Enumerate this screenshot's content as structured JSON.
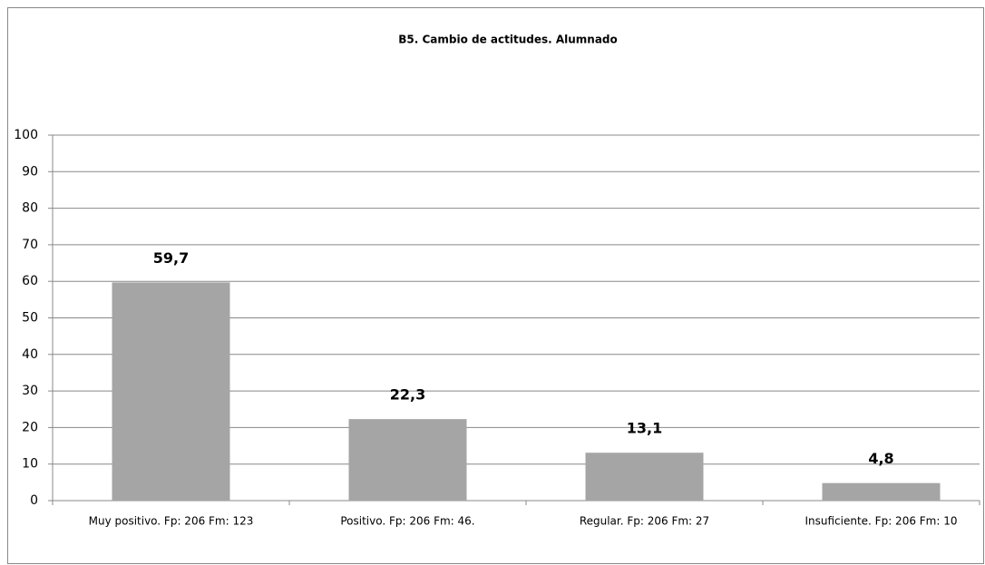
{
  "chart_data": {
    "type": "bar",
    "title": "B5. Cambio de actitudes. Alumnado",
    "categories": [
      "Muy positivo. Fp: 206 Fm: 123",
      "Positivo. Fp: 206 Fm: 46.",
      "Regular. Fp: 206 Fm: 27",
      "Insuficiente. Fp: 206 Fm: 10"
    ],
    "values": [
      59.7,
      22.3,
      13.1,
      4.8
    ],
    "value_labels": [
      "59,7",
      "22,3",
      "13,1",
      "4,8"
    ],
    "color": "#a5a5a5",
    "ylim": [
      0,
      100
    ],
    "yticks": [
      0,
      10,
      20,
      30,
      40,
      50,
      60,
      70,
      80,
      90,
      100
    ],
    "grid": true
  }
}
